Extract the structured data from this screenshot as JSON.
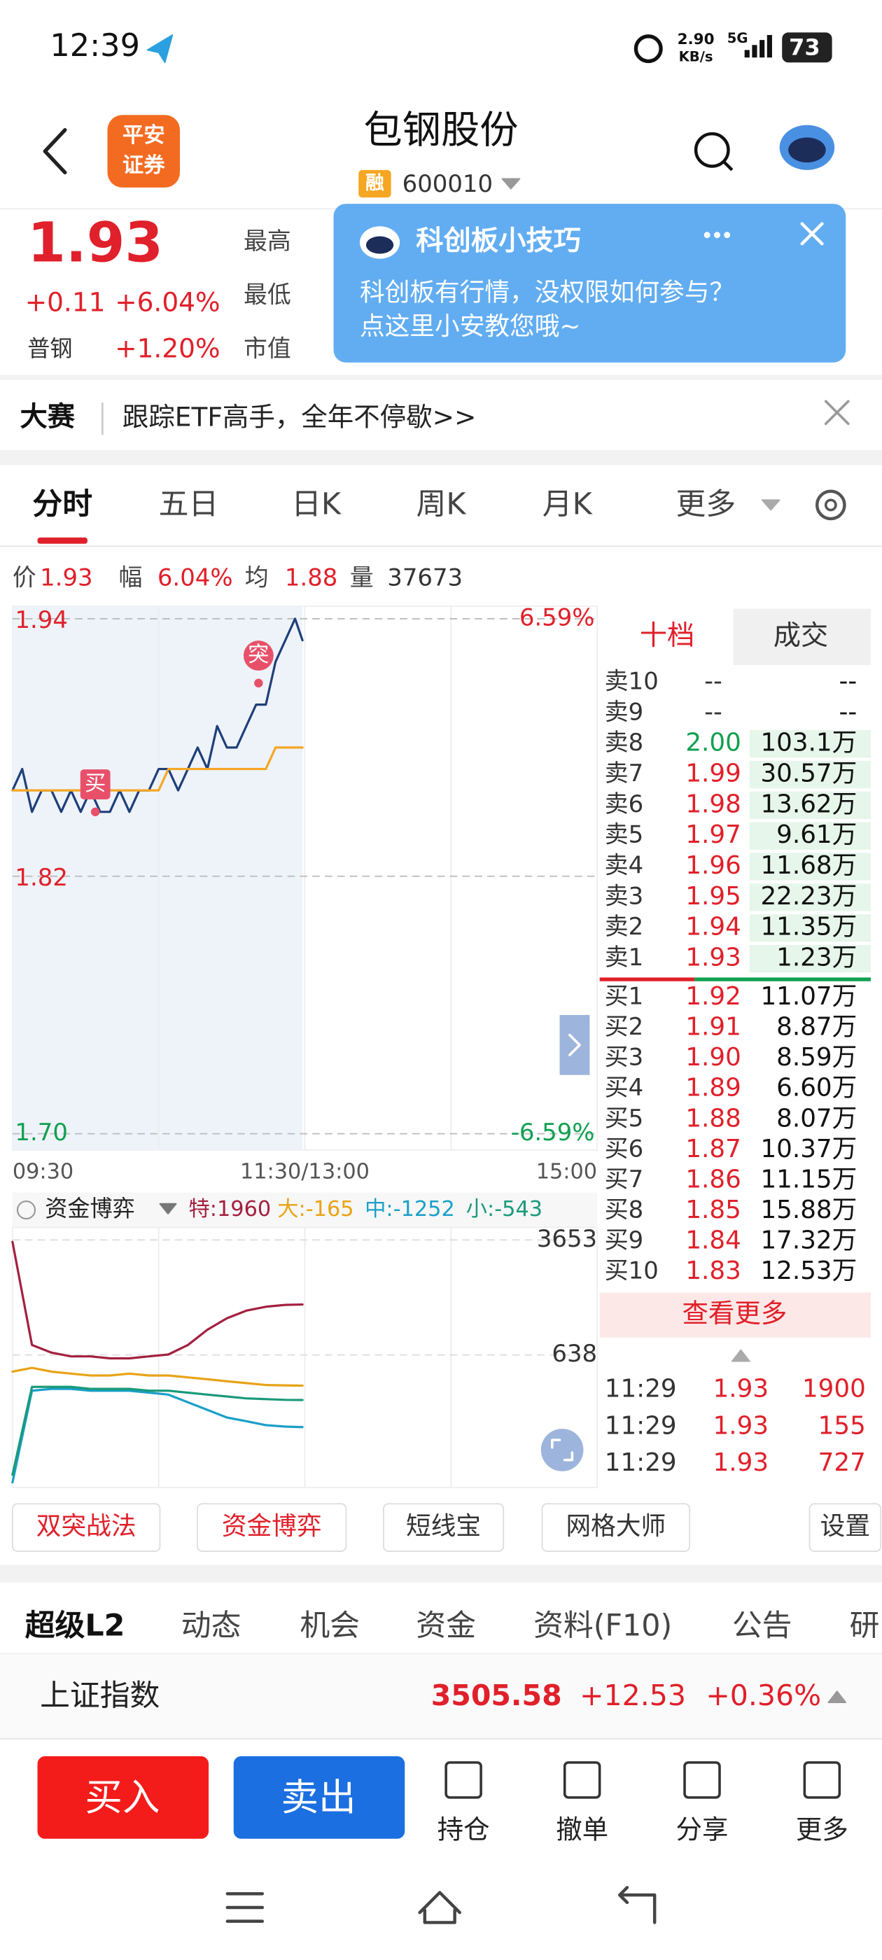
{
  "status_bar": {
    "time": "12:39",
    "speed": "2.90",
    "speed_unit": "KB/s",
    "network": "5G",
    "battery": "73"
  },
  "header": {
    "logo": [
      "平安",
      "证券"
    ],
    "title": "包钢股份",
    "badge": "融",
    "code": "600010"
  },
  "quote": {
    "price": "1.93",
    "change": "+0.11",
    "change_pct": "+6.04%",
    "sector": "普钢",
    "sector_change": "+1.20%",
    "labels": [
      "最高",
      "最低",
      "市值"
    ]
  },
  "popup": {
    "title": "科创板小技巧",
    "lines": [
      "科创板有行情，没权限如何参与？",
      "点这里小安教您哦~"
    ]
  },
  "banner": {
    "tag": "大赛",
    "text": "跟踪ETF高手，全年不停歇>>"
  },
  "period_tabs": [
    "分时",
    "五日",
    "日K",
    "周K",
    "月K",
    "更多"
  ],
  "info_bar": [
    [
      "价",
      "1.93"
    ],
    [
      "幅",
      "6.04%"
    ],
    [
      "均",
      "1.88"
    ],
    [
      "量",
      "37673"
    ]
  ],
  "chart_data": [
    {
      "type": "line",
      "x": [
        0,
        4,
        8,
        12,
        16,
        20,
        24,
        28,
        32,
        36,
        40,
        44,
        48,
        52,
        56,
        60,
        64,
        68,
        72,
        76,
        80,
        84,
        88,
        92,
        96,
        100,
        104,
        108,
        112,
        116,
        119
      ],
      "xlim": [
        0,
        240
      ],
      "xticks": [
        {
          "value": 0,
          "label": "09:30"
        },
        {
          "value": 120,
          "label": "11:30/13:00"
        },
        {
          "value": 240,
          "label": "15:00"
        }
      ],
      "ylim": [
        1.7,
        1.94
      ],
      "yticks": [
        {
          "value": 1.7,
          "label": "1.70"
        },
        1.82,
        1.94
      ],
      "y2lim": [
        -6.59,
        6.59
      ],
      "y2ticks": [
        {
          "value": -6.59,
          "label": "-6.59%"
        },
        {
          "value": 6.59,
          "label": "6.59%"
        }
      ],
      "series": [
        {
          "color": "#1f3f7a",
          "values": [
            1.86,
            1.87,
            1.85,
            1.86,
            1.86,
            1.85,
            1.86,
            1.85,
            1.86,
            1.85,
            1.85,
            1.86,
            1.85,
            1.86,
            1.86,
            1.87,
            1.87,
            1.86,
            1.87,
            1.88,
            1.87,
            1.89,
            1.88,
            1.88,
            1.89,
            1.9,
            1.9,
            1.92,
            1.93,
            1.94,
            1.93
          ]
        },
        {
          "color": "#f5a623",
          "values": [
            1.86,
            1.86,
            1.86,
            1.86,
            1.86,
            1.86,
            1.86,
            1.86,
            1.86,
            1.86,
            1.86,
            1.86,
            1.86,
            1.86,
            1.86,
            1.86,
            1.87,
            1.87,
            1.87,
            1.87,
            1.87,
            1.87,
            1.87,
            1.87,
            1.87,
            1.87,
            1.87,
            1.88,
            1.88,
            1.88,
            1.88
          ]
        }
      ],
      "annotations": [
        {
          "text": "买",
          "x": 34,
          "y": 1.85
        },
        {
          "text": "突",
          "x": 101,
          "y": 1.91
        }
      ]
    },
    {
      "type": "line",
      "title": "资金博弈",
      "x": [
        0,
        8,
        16,
        24,
        32,
        40,
        48,
        56,
        64,
        72,
        80,
        88,
        96,
        104,
        112,
        119
      ],
      "xlim": [
        0,
        240
      ],
      "ylim": [
        -2770,
        3880
      ],
      "yticks": [
        638,
        3653
      ],
      "series": [
        {
          "name": "特:1960",
          "color": "#a3203f",
          "values": [
            3600,
            900,
            700,
            600,
            600,
            550,
            550,
            600,
            650,
            900,
            1300,
            1600,
            1800,
            1900,
            1950,
            1960
          ]
        },
        {
          "name": "大:-165",
          "color": "#e8a317",
          "values": [
            200,
            300,
            200,
            150,
            100,
            100,
            150,
            100,
            100,
            50,
            0,
            -50,
            -100,
            -150,
            -160,
            -165
          ]
        },
        {
          "name": "中:-1252",
          "color": "#1aa0c8",
          "values": [
            -2700,
            -300,
            -250,
            -250,
            -300,
            -300,
            -300,
            -350,
            -400,
            -600,
            -800,
            -1000,
            -1100,
            -1200,
            -1240,
            -1252
          ]
        },
        {
          "name": "小:-543",
          "color": "#1a9a7a",
          "values": [
            -2500,
            -200,
            -200,
            -200,
            -250,
            -250,
            -250,
            -300,
            -300,
            -350,
            -400,
            -450,
            -500,
            -520,
            -540,
            -543
          ]
        }
      ]
    }
  ],
  "order_book": {
    "tabs": [
      "十档",
      "成交"
    ],
    "asks": [
      [
        "卖10",
        "--",
        "--"
      ],
      [
        "卖9",
        "--",
        "--"
      ],
      [
        "卖8",
        "2.00",
        "103.1万"
      ],
      [
        "卖7",
        "1.99",
        "30.57万"
      ],
      [
        "卖6",
        "1.98",
        "13.62万"
      ],
      [
        "卖5",
        "1.97",
        "9.61万"
      ],
      [
        "卖4",
        "1.96",
        "11.68万"
      ],
      [
        "卖3",
        "1.95",
        "22.23万"
      ],
      [
        "卖2",
        "1.94",
        "11.35万"
      ],
      [
        "卖1",
        "1.93",
        "1.23万"
      ]
    ],
    "bids": [
      [
        "买1",
        "1.92",
        "11.07万"
      ],
      [
        "买2",
        "1.91",
        "8.87万"
      ],
      [
        "买3",
        "1.90",
        "8.59万"
      ],
      [
        "买4",
        "1.89",
        "6.60万"
      ],
      [
        "买5",
        "1.88",
        "8.07万"
      ],
      [
        "买6",
        "1.87",
        "10.37万"
      ],
      [
        "买7",
        "1.86",
        "11.15万"
      ],
      [
        "买8",
        "1.85",
        "15.88万"
      ],
      [
        "买9",
        "1.84",
        "17.32万"
      ],
      [
        "买10",
        "1.83",
        "12.53万"
      ]
    ],
    "more": "查看更多",
    "trades": [
      [
        "11:29",
        "1.93",
        "1900"
      ],
      [
        "11:29",
        "1.93",
        "155"
      ],
      [
        "11:29",
        "1.93",
        "727"
      ]
    ]
  },
  "tools": [
    "双突战法",
    "资金博弈",
    "短线宝",
    "网格大师",
    "设置"
  ],
  "section_tabs": [
    "超级L2",
    "动态",
    "机会",
    "资金",
    "资料(F10)",
    "公告",
    "研"
  ],
  "index": {
    "name": "上证指数",
    "value": "3505.58",
    "change": "+12.53",
    "change_pct": "+0.36%"
  },
  "actions": {
    "buy": "买入",
    "sell": "卖出",
    "items": [
      "持仓",
      "撤单",
      "分享",
      "更多"
    ]
  }
}
